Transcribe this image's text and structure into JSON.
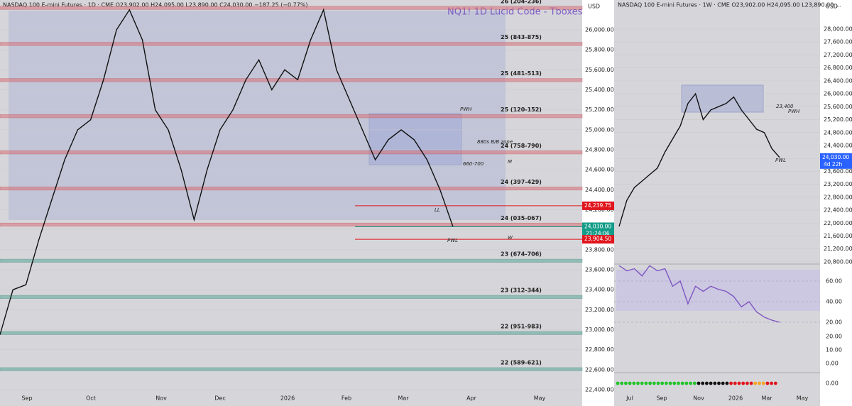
{
  "left": {
    "header": "NASDAQ 100 E-mini Futures · 1D · CME  O23,902.00  H24,095.00  L23,890.00  C24,030.00  −187.25 (−0.77%)",
    "watermark": "NQ1! 1D  Lucid Code - Tboxes",
    "currency": "USD",
    "yticks": [
      {
        "value": 26000,
        "label": "26,000.00"
      },
      {
        "value": 25800,
        "label": "25,800.00"
      },
      {
        "value": 25600,
        "label": "25,600.00"
      },
      {
        "value": 25400,
        "label": "25,400.00"
      },
      {
        "value": 25200,
        "label": "25,200.00"
      },
      {
        "value": 25000,
        "label": "25,000.00"
      },
      {
        "value": 24800,
        "label": "24,800.00"
      },
      {
        "value": 24600,
        "label": "24,600.00"
      },
      {
        "value": 24400,
        "label": "24,400.00"
      },
      {
        "value": 24200,
        "label": "24,200.00"
      },
      {
        "value": 24000,
        "label": "24,000.00"
      },
      {
        "value": 23800,
        "label": "23,800.00"
      },
      {
        "value": 23600,
        "label": "23,600.00"
      },
      {
        "value": 23400,
        "label": "23,400.00"
      },
      {
        "value": 23200,
        "label": "23,200.00"
      },
      {
        "value": 23000,
        "label": "23,000.00"
      },
      {
        "value": 22800,
        "label": "22,800.00"
      },
      {
        "value": 22600,
        "label": "22,600.00"
      },
      {
        "value": 22400,
        "label": "22,400.00"
      }
    ],
    "levels": [
      {
        "label": "26 (204-236)",
        "low": 26204,
        "high": 26236
      },
      {
        "label": "25 (843-875)",
        "low": 25843,
        "high": 25875
      },
      {
        "label": "25 (481-513)",
        "low": 25481,
        "high": 25513
      },
      {
        "label": "25 (120-152)",
        "low": 25120,
        "high": 25152
      },
      {
        "label": "24 (758-790)",
        "low": 24758,
        "high": 24790
      },
      {
        "label": "24 (397-429)",
        "low": 24397,
        "high": 24429
      },
      {
        "label": "24 (035-067)",
        "low": 24035,
        "high": 24067
      },
      {
        "label": "23 (674-706)",
        "low": 23674,
        "high": 23706
      },
      {
        "label": "23 (312-344)",
        "low": 23312,
        "high": 23344
      },
      {
        "label": "22 (951-983)",
        "low": 22951,
        "high": 22983
      },
      {
        "label": "22 (589-621)",
        "low": 22589,
        "high": 22621
      }
    ],
    "badges": [
      {
        "value": 24239.75,
        "label": "24,239.75",
        "color": "#e0161d"
      },
      {
        "value": 24030,
        "label": "24,030.00",
        "countdown": "21:24:06",
        "color": "#139c88"
      },
      {
        "value": 23904.5,
        "label": "23,904.50",
        "color": "#e0161d"
      }
    ],
    "annotations": [
      "880s B/B zone",
      "660-700",
      "PWH",
      "LL",
      "PWL",
      "M",
      "W"
    ],
    "xlabels": [
      "Sep",
      "Oct",
      "Nov",
      "Dec",
      "2026",
      "Feb",
      "Mar",
      "Apr",
      "May"
    ],
    "closes": [
      22950,
      23400,
      23450,
      23900,
      24300,
      24700,
      25000,
      25100,
      25500,
      26000,
      26200,
      25900,
      25200,
      25000,
      24600,
      24100,
      24600,
      25000,
      25200,
      25500,
      25700,
      25400,
      25600,
      25500,
      25900,
      26200,
      25600,
      25300,
      25000,
      24700,
      24900,
      25000,
      24900,
      24700,
      24400,
      24030
    ]
  },
  "right": {
    "header": "NASDAQ 100 E-mini Futures · 1W · CME  O23,902.00  H24,095.00  L23,890.00 ...",
    "currency": "USD",
    "yticks": [
      {
        "value": 28000,
        "label": "28,000.00"
      },
      {
        "value": 27600,
        "label": "27,600.00"
      },
      {
        "value": 27200,
        "label": "27,200.00"
      },
      {
        "value": 26800,
        "label": "26,800.00"
      },
      {
        "value": 26400,
        "label": "26,400.00"
      },
      {
        "value": 26000,
        "label": "26,000.00"
      },
      {
        "value": 25600,
        "label": "25,600.00"
      },
      {
        "value": 25200,
        "label": "25,200.00"
      },
      {
        "value": 24800,
        "label": "24,800.00"
      },
      {
        "value": 24400,
        "label": "24,400.00"
      },
      {
        "value": 24000,
        "label": "24,000.00"
      },
      {
        "value": 23600,
        "label": "23,600.00"
      },
      {
        "value": 23200,
        "label": "23,200.00"
      },
      {
        "value": 22800,
        "label": "22,800.00"
      },
      {
        "value": 22400,
        "label": "22,400.00"
      },
      {
        "value": 22000,
        "label": "22,000.00"
      },
      {
        "value": 21600,
        "label": "21,600.00"
      },
      {
        "value": 21200,
        "label": "21,200.00"
      },
      {
        "value": 20800,
        "label": "20,800.00"
      }
    ],
    "rsi_ticks": [
      {
        "value": 60,
        "label": "60.00"
      },
      {
        "value": 40,
        "label": "40.00"
      },
      {
        "value": 20,
        "label": "20.00"
      }
    ],
    "lower_labels": [
      "20.00",
      "10.00",
      "0.00",
      "0.00"
    ],
    "badge": {
      "value": 24030,
      "label": "24,030.00",
      "countdown": "4d 22h"
    },
    "annotations": [
      "23,400",
      "PWH",
      "PWL"
    ],
    "xlabels": [
      "Jul",
      "Sep",
      "Nov",
      "2026",
      "Mar",
      "May"
    ],
    "closes": [
      21900,
      22700,
      23100,
      23300,
      23500,
      23700,
      24200,
      24600,
      25000,
      25700,
      26000,
      25200,
      25500,
      25600,
      25700,
      25900,
      25500,
      25200,
      24900,
      24800,
      24300,
      24030
    ],
    "rsi": [
      75,
      70,
      72,
      65,
      75,
      70,
      72,
      55,
      60,
      38,
      55,
      50,
      55,
      52,
      50,
      45,
      35,
      40,
      30,
      25,
      22,
      20
    ]
  }
}
